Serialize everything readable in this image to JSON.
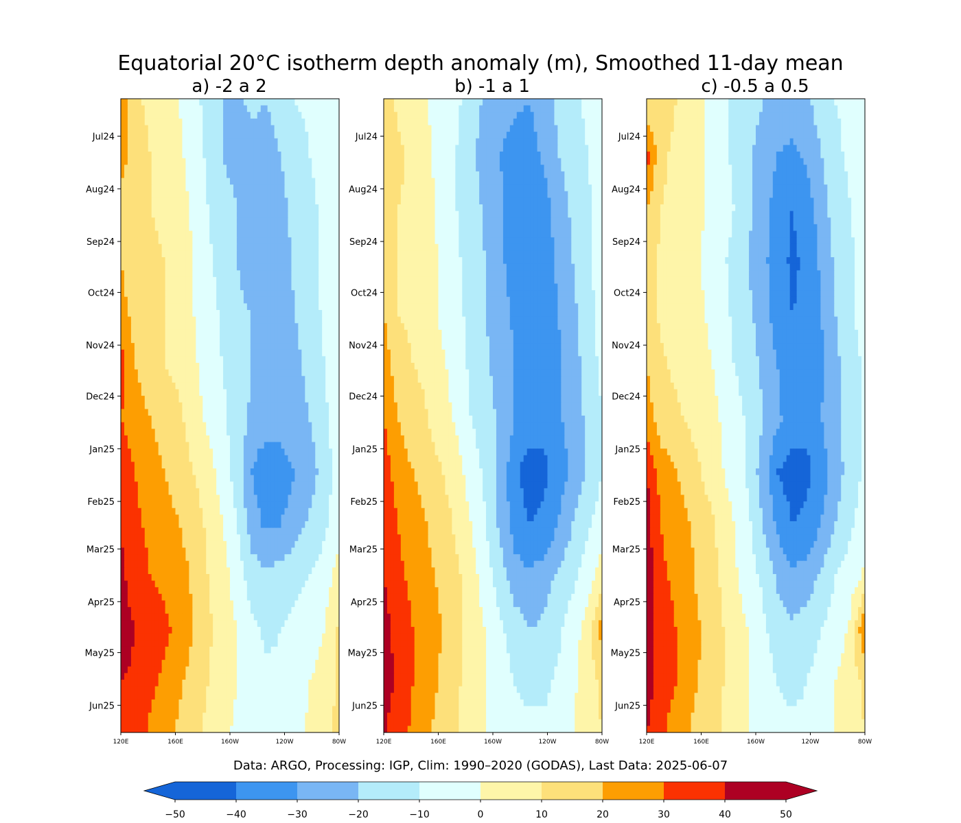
{
  "figure": {
    "suptitle": "Equatorial 20°C isotherm depth anomaly (m), Smoothed 11-day mean",
    "footnote": "Data: ARGO, Processing: IGP, Clim: 1990–2020 (GODAS), Last Data: 2025-06-07"
  },
  "colors": {
    "levels": [
      -50,
      -40,
      -30,
      -20,
      -10,
      0,
      10,
      20,
      30,
      40,
      50
    ],
    "bands": [
      "#1565d8",
      "#3d95f0",
      "#79b6f4",
      "#b4ecfa",
      "#e0fffe",
      "#fef5a9",
      "#fde07a",
      "#fd9e02",
      "#fb3201",
      "#ad0023"
    ],
    "under": "#1565d8",
    "over": "#ad0023",
    "missing": "#ffffff"
  },
  "chart_data": [
    {
      "type": "heatmap",
      "title": "a) -2 a 2",
      "xlabel": "",
      "ylabel": "",
      "x_ticks": [
        "120E",
        "160E",
        "160W",
        "120W",
        "80W"
      ],
      "x_range": [
        120,
        280
      ],
      "y_ticks": [
        "Jul24",
        "Aug24",
        "Sep24",
        "Oct24",
        "Nov24",
        "Dec24",
        "Jan25",
        "Feb25",
        "Mar25",
        "Apr25",
        "May25",
        "Jun25"
      ],
      "y_range": [
        "2024-06-09",
        "2025-06-17"
      ],
      "x": [
        125,
        135,
        145,
        155,
        165,
        175,
        185,
        195,
        205,
        215,
        225,
        235,
        245,
        255,
        265,
        275
      ],
      "y": [
        "Jun24",
        "Jul24",
        "Aug24",
        "Sep24",
        "Oct24",
        "Nov24",
        "Dec24",
        "Jan25",
        "Feb25",
        "Mar25",
        "Apr25",
        "May25",
        "Jun25"
      ],
      "z": [
        [
          30,
          12,
          8,
          5,
          0,
          -5,
          -15,
          -20,
          -22,
          -18,
          -20,
          -15,
          -10,
          -8,
          -5,
          0
        ],
        [
          25,
          15,
          10,
          8,
          2,
          -5,
          -12,
          -20,
          -25,
          -24,
          -25,
          -20,
          -15,
          -10,
          -6,
          0
        ],
        [
          15,
          12,
          10,
          8,
          5,
          -2,
          -10,
          -15,
          -20,
          -22,
          -25,
          -22,
          -18,
          -12,
          -8,
          -2
        ],
        [
          20,
          12,
          12,
          10,
          5,
          0,
          -8,
          -15,
          -20,
          -25,
          -25,
          -24,
          -18,
          -12,
          -8,
          0
        ],
        [
          25,
          15,
          12,
          10,
          5,
          0,
          -5,
          -12,
          -18,
          -20,
          -25,
          -25,
          -20,
          -15,
          -8,
          0
        ],
        [
          35,
          20,
          15,
          10,
          8,
          2,
          -5,
          -10,
          -15,
          -20,
          -22,
          -25,
          -22,
          -18,
          -10,
          -2
        ],
        [
          30,
          25,
          20,
          15,
          12,
          5,
          -2,
          -8,
          -15,
          -22,
          -25,
          -25,
          -22,
          -20,
          -12,
          -5
        ],
        [
          35,
          30,
          25,
          20,
          15,
          10,
          5,
          -5,
          -15,
          -30,
          -38,
          -35,
          -30,
          -25,
          -15,
          -5
        ],
        [
          40,
          32,
          28,
          25,
          20,
          15,
          8,
          0,
          -10,
          -25,
          -32,
          -30,
          -25,
          -18,
          -12,
          -5
        ],
        [
          42,
          35,
          30,
          28,
          25,
          18,
          10,
          5,
          -5,
          -15,
          -18,
          -15,
          -12,
          -10,
          -5,
          5
        ],
        [
          45,
          40,
          35,
          32,
          28,
          20,
          12,
          5,
          0,
          -8,
          -12,
          -10,
          -8,
          -5,
          0,
          12
        ],
        [
          40,
          38,
          32,
          28,
          22,
          15,
          10,
          5,
          0,
          -5,
          -8,
          -8,
          -5,
          0,
          5,
          12
        ],
        [
          38,
          35,
          28,
          25,
          18,
          12,
          8,
          2,
          -2,
          -5,
          -5,
          -5,
          -2,
          2,
          8,
          12
        ]
      ]
    },
    {
      "type": "heatmap",
      "title": "b) -1 a 1",
      "xlabel": "",
      "ylabel": "",
      "x_ticks": [
        "120E",
        "160E",
        "160W",
        "120W",
        "80W"
      ],
      "x_range": [
        120,
        280
      ],
      "y_ticks": [
        "Jul24",
        "Aug24",
        "Sep24",
        "Oct24",
        "Nov24",
        "Dec24",
        "Jan25",
        "Feb25",
        "Mar25",
        "Apr25",
        "May25",
        "Jun25"
      ],
      "y_range": [
        "2024-06-09",
        "2025-06-17"
      ],
      "x": [
        125,
        135,
        145,
        155,
        165,
        175,
        185,
        195,
        205,
        215,
        225,
        235,
        245,
        255,
        265,
        275
      ],
      "y": [
        "Jun24",
        "Jul24",
        "Aug24",
        "Sep24",
        "Oct24",
        "Nov24",
        "Dec24",
        "Jan25",
        "Feb25",
        "Mar25",
        "Apr25",
        "May25",
        "Jun25"
      ],
      "z": [
        [
          15,
          8,
          5,
          0,
          -5,
          -8,
          -15,
          -22,
          -25,
          -28,
          -30,
          -25,
          -18,
          -12,
          -8,
          -5
        ],
        [
          20,
          12,
          8,
          2,
          -5,
          -10,
          -18,
          -25,
          -30,
          -35,
          -35,
          -28,
          -20,
          -15,
          -10,
          -5
        ],
        [
          15,
          10,
          8,
          5,
          -5,
          -10,
          -15,
          -22,
          -28,
          -38,
          -40,
          -35,
          -25,
          -18,
          -12,
          -5
        ],
        [
          15,
          10,
          8,
          5,
          -2,
          -8,
          -15,
          -20,
          -28,
          -35,
          -40,
          -35,
          -28,
          -20,
          -12,
          -5
        ],
        [
          20,
          10,
          8,
          5,
          -2,
          -8,
          -12,
          -20,
          -25,
          -32,
          -38,
          -38,
          -30,
          -22,
          -15,
          -5
        ],
        [
          25,
          15,
          10,
          8,
          2,
          -5,
          -12,
          -18,
          -25,
          -30,
          -35,
          -38,
          -32,
          -25,
          -15,
          -8
        ],
        [
          30,
          20,
          15,
          10,
          5,
          -2,
          -10,
          -15,
          -22,
          -30,
          -35,
          -38,
          -32,
          -25,
          -18,
          -10
        ],
        [
          35,
          25,
          20,
          15,
          10,
          5,
          -5,
          -12,
          -22,
          -38,
          -45,
          -42,
          -35,
          -28,
          -18,
          -10
        ],
        [
          40,
          30,
          25,
          20,
          15,
          8,
          0,
          -10,
          -22,
          -35,
          -40,
          -38,
          -30,
          -20,
          -12,
          -5
        ],
        [
          40,
          32,
          28,
          22,
          18,
          12,
          5,
          -5,
          -15,
          -25,
          -28,
          -25,
          -18,
          -12,
          -5,
          5
        ],
        [
          45,
          35,
          30,
          25,
          20,
          15,
          5,
          0,
          -8,
          -15,
          -20,
          -18,
          -12,
          -5,
          5,
          25
        ],
        [
          45,
          38,
          30,
          25,
          18,
          12,
          5,
          0,
          -5,
          -10,
          -12,
          -12,
          -8,
          -2,
          5,
          12
        ],
        [
          40,
          35,
          28,
          22,
          15,
          10,
          5,
          0,
          -5,
          -8,
          -8,
          -8,
          -5,
          0,
          5,
          10
        ]
      ]
    },
    {
      "type": "heatmap",
      "title": "c) -0.5 a 0.5",
      "xlabel": "",
      "ylabel": "",
      "x_ticks": [
        "120E",
        "160E",
        "160W",
        "120W",
        "80W"
      ],
      "x_range": [
        120,
        280
      ],
      "y_ticks": [
        "Jul24",
        "Aug24",
        "Sep24",
        "Oct24",
        "Nov24",
        "Dec24",
        "Jan25",
        "Feb25",
        "Mar25",
        "Apr25",
        "May25",
        "Jun25"
      ],
      "y_range": [
        "2024-06-09",
        "2025-06-17"
      ],
      "x": [
        125,
        135,
        145,
        155,
        165,
        175,
        185,
        195,
        205,
        215,
        225,
        235,
        245,
        255,
        265,
        275
      ],
      "y": [
        "Jun24",
        "Jul24",
        "Aug24",
        "Sep24",
        "Oct24",
        "Nov24",
        "Dec24",
        "Jan25",
        "Feb25",
        "Mar25",
        "Apr25",
        "May25",
        "Jun25"
      ],
      "z": [
        [
          10,
          15,
          10,
          5,
          0,
          -5,
          -12,
          -15,
          -20,
          -22,
          -25,
          -22,
          -15,
          -10,
          -8,
          -5
        ],
        [
          35,
          12,
          8,
          5,
          0,
          -5,
          -12,
          -18,
          -25,
          -30,
          -32,
          -28,
          -20,
          -12,
          -8,
          -5
        ],
        [
          20,
          10,
          8,
          5,
          0,
          -5,
          -10,
          -18,
          -25,
          -35,
          -40,
          -35,
          -25,
          -15,
          -10,
          -5
        ],
        [
          15,
          8,
          5,
          5,
          -2,
          -8,
          -12,
          -20,
          -28,
          -35,
          -42,
          -38,
          -28,
          -18,
          -12,
          -5
        ],
        [
          15,
          8,
          5,
          5,
          0,
          -5,
          -12,
          -18,
          -25,
          -35,
          -40,
          -38,
          -30,
          -20,
          -12,
          -5
        ],
        [
          20,
          12,
          8,
          5,
          2,
          -2,
          -10,
          -15,
          -22,
          -30,
          -38,
          -40,
          -32,
          -22,
          -15,
          -8
        ],
        [
          25,
          15,
          12,
          8,
          5,
          0,
          -5,
          -12,
          -20,
          -28,
          -35,
          -38,
          -30,
          -22,
          -15,
          -8
        ],
        [
          40,
          25,
          20,
          15,
          8,
          2,
          -5,
          -12,
          -25,
          -40,
          -45,
          -42,
          -35,
          -25,
          -15,
          -8
        ],
        [
          45,
          30,
          25,
          20,
          15,
          8,
          0,
          -8,
          -20,
          -32,
          -40,
          -38,
          -30,
          -20,
          -12,
          -5
        ],
        [
          45,
          32,
          28,
          22,
          15,
          10,
          2,
          -5,
          -12,
          -22,
          -28,
          -25,
          -18,
          -10,
          -5,
          2
        ],
        [
          45,
          35,
          30,
          25,
          18,
          12,
          5,
          0,
          -8,
          -15,
          -18,
          -15,
          -10,
          -5,
          2,
          30
        ],
        [
          45,
          35,
          30,
          22,
          18,
          12,
          5,
          0,
          -5,
          -10,
          -12,
          -10,
          -5,
          0,
          5,
          12
        ],
        [
          40,
          32,
          25,
          20,
          15,
          10,
          5,
          0,
          -5,
          -8,
          -8,
          -8,
          -5,
          0,
          5,
          10
        ]
      ]
    }
  ],
  "colorbar": {
    "tick_labels": [
      "−50",
      "−40",
      "−30",
      "−20",
      "−10",
      "0",
      "10",
      "20",
      "30",
      "40",
      "50"
    ]
  }
}
